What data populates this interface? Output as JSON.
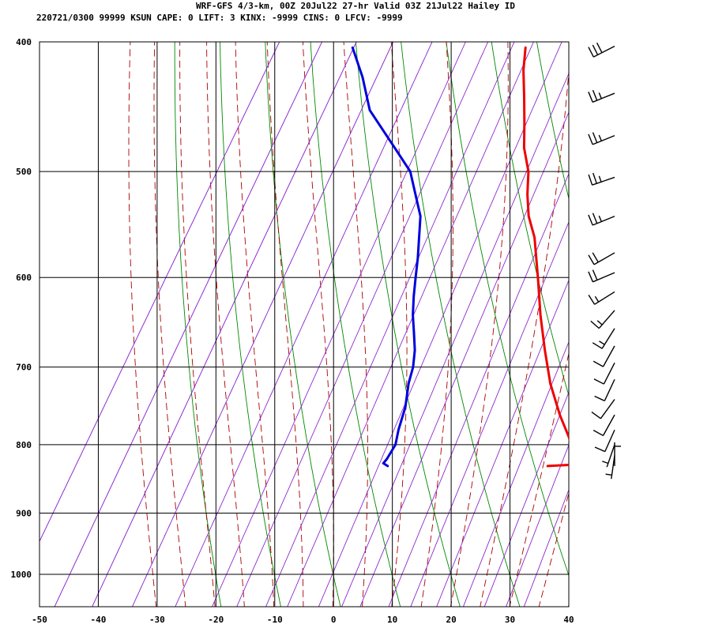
{
  "header": {
    "line1": "WRF-GFS 4/3-km, 00Z 20Jul22 27-hr Valid 03Z 21Jul22 Hailey ID",
    "line2": "220721/0300 99999  KSUN    CAPE:     0 LIFT:     3 KINX: -9999 CINS:     0 LFCV: -9999"
  },
  "chart_data": {
    "type": "line",
    "title": "WRF-GFS 4/3-km, 00Z 20Jul22 27-hr Valid 03Z 21Jul22 Hailey ID",
    "subtitle": "220721/0300 99999  KSUN    CAPE:     0 LIFT:     3 KINX: -9999 CINS:     0 LFCV: -9999",
    "xlabel": "",
    "ylabel": "",
    "xlim": [
      -50,
      40
    ],
    "ylim": [
      1050,
      400
    ],
    "y_scale": "log",
    "skew": true,
    "grid": true,
    "x_ticks": [
      -50,
      -40,
      -30,
      -20,
      -10,
      0,
      10,
      20,
      30,
      40
    ],
    "y_ticks": [
      400,
      500,
      600,
      700,
      800,
      900,
      1000
    ],
    "colors": {
      "temperature": "#ee0000",
      "dewpoint": "#0000dd",
      "dry_adiabat": "#008800",
      "moist_adiabat": "#aa0000",
      "mixing_ratio": "#8822cc",
      "grid": "#000000"
    },
    "series": [
      {
        "key": "temperature",
        "points": [
          [
            830,
            23.0
          ],
          [
            828,
            27.3
          ],
          [
            820,
            26.6
          ],
          [
            806,
            25.5
          ],
          [
            790,
            23.9
          ],
          [
            760,
            20.2
          ],
          [
            720,
            15.6
          ],
          [
            680,
            11.5
          ],
          [
            640,
            7.4
          ],
          [
            600,
            3.4
          ],
          [
            560,
            -1.0
          ],
          [
            540,
            -4.0
          ],
          [
            520,
            -6.3
          ],
          [
            500,
            -8.3
          ],
          [
            480,
            -11.3
          ],
          [
            460,
            -13.6
          ],
          [
            440,
            -16.1
          ],
          [
            420,
            -18.8
          ],
          [
            404,
            -20.6
          ]
        ]
      },
      {
        "key": "dewpoint",
        "points": [
          [
            830,
            -4.2
          ],
          [
            826,
            -5.2
          ],
          [
            820,
            -5.0
          ],
          [
            800,
            -4.9
          ],
          [
            780,
            -5.8
          ],
          [
            750,
            -6.8
          ],
          [
            720,
            -8.5
          ],
          [
            700,
            -9.3
          ],
          [
            680,
            -10.6
          ],
          [
            660,
            -12.4
          ],
          [
            640,
            -14.3
          ],
          [
            620,
            -15.9
          ],
          [
            600,
            -17.4
          ],
          [
            580,
            -18.9
          ],
          [
            540,
            -22.4
          ],
          [
            500,
            -28.4
          ],
          [
            480,
            -33.3
          ],
          [
            450,
            -41.1
          ],
          [
            425,
            -45.5
          ],
          [
            404,
            -50.0
          ]
        ]
      }
    ],
    "wind_barbs": [
      {
        "p": 403,
        "dir": 243,
        "spd": 30
      },
      {
        "p": 437,
        "dir": 248,
        "spd": 25
      },
      {
        "p": 470,
        "dir": 248,
        "spd": 25
      },
      {
        "p": 505,
        "dir": 251,
        "spd": 25
      },
      {
        "p": 540,
        "dir": 248,
        "spd": 25
      },
      {
        "p": 575,
        "dir": 240,
        "spd": 20
      },
      {
        "p": 595,
        "dir": 247,
        "spd": 20
      },
      {
        "p": 615,
        "dir": 238,
        "spd": 15
      },
      {
        "p": 635,
        "dir": 221,
        "spd": 15
      },
      {
        "p": 655,
        "dir": 212,
        "spd": 15
      },
      {
        "p": 675,
        "dir": 209,
        "spd": 10
      },
      {
        "p": 695,
        "dir": 207,
        "spd": 10
      },
      {
        "p": 715,
        "dir": 205,
        "spd": 10
      },
      {
        "p": 740,
        "dir": 216,
        "spd": 10
      },
      {
        "p": 760,
        "dir": 209,
        "spd": 10
      },
      {
        "p": 780,
        "dir": 204,
        "spd": 10
      },
      {
        "p": 800,
        "dir": 199,
        "spd": 5
      },
      {
        "p": 815,
        "dir": 188,
        "spd": 5
      },
      {
        "p": 830,
        "dir": 360,
        "spd": 5
      }
    ]
  }
}
